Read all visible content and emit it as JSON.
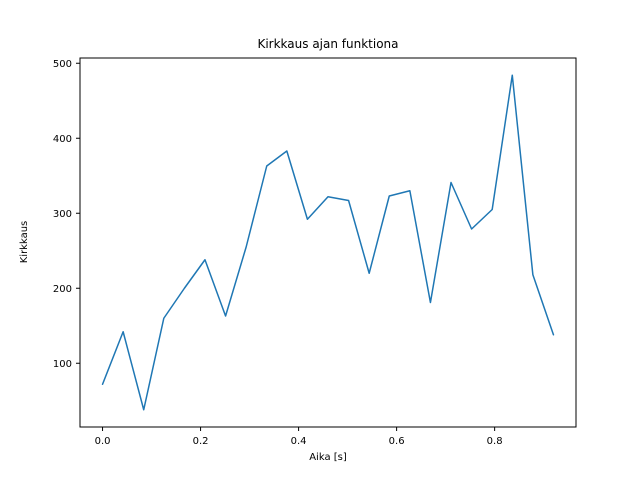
{
  "figure": {
    "title": "Kirkkaus ajan funktiona",
    "xlabel": "Aika [s]",
    "ylabel": "Kirkkaus"
  },
  "colors": {
    "line": "#1f77b4",
    "axis": "#000000",
    "background": "#ffffff"
  },
  "chart_data": {
    "type": "line",
    "title": "Kirkkaus ajan funktiona",
    "xlabel": "Aika [s]",
    "ylabel": "Kirkkaus",
    "x": [
      0.0,
      0.042,
      0.084,
      0.125,
      0.167,
      0.209,
      0.251,
      0.293,
      0.335,
      0.376,
      0.418,
      0.46,
      0.502,
      0.544,
      0.585,
      0.627,
      0.669,
      0.711,
      0.753,
      0.795,
      0.836,
      0.878,
      0.92
    ],
    "values": [
      72,
      142,
      38,
      160,
      200,
      238,
      163,
      255,
      363,
      383,
      292,
      322,
      317,
      220,
      323,
      330,
      181,
      341,
      279,
      305,
      484,
      218,
      138
    ],
    "xlim": [
      -0.046,
      0.966
    ],
    "ylim": [
      15,
      507
    ],
    "xticks": {
      "values": [
        0.0,
        0.2,
        0.4,
        0.6,
        0.8
      ],
      "labels": [
        "0.0",
        "0.2",
        "0.4",
        "0.6",
        "0.8"
      ]
    },
    "yticks": {
      "values": [
        100,
        200,
        300,
        400,
        500
      ],
      "labels": [
        "100",
        "200",
        "300",
        "400",
        "500"
      ]
    },
    "grid": false,
    "legend": null
  }
}
